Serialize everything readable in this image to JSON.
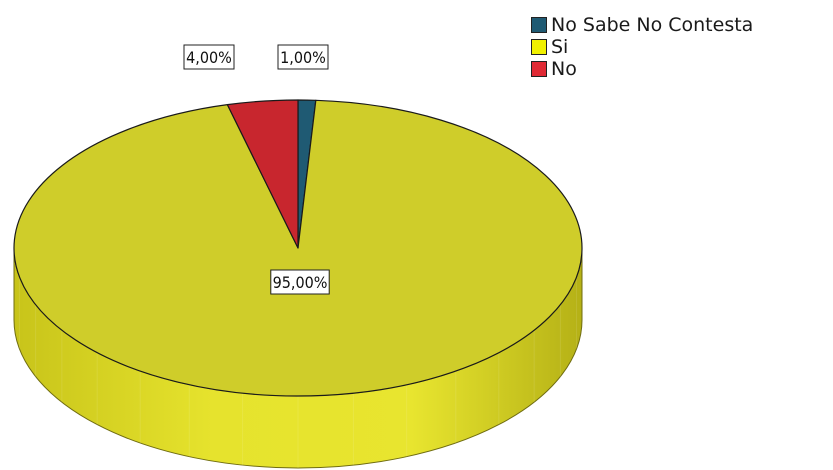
{
  "chart_data": {
    "type": "pie",
    "title": "",
    "slices": [
      {
        "label": "No Sabe No Contesta",
        "value": 1.0,
        "display": "1,00%",
        "color": "#1f5a73"
      },
      {
        "label": "Si",
        "value": 95.0,
        "display": "95,00%",
        "color": "#cfcd2a"
      },
      {
        "label": "No",
        "value": 4.0,
        "display": "4,00%",
        "color": "#c8262e"
      }
    ],
    "legend_position": "top-right",
    "style": "3d"
  }
}
